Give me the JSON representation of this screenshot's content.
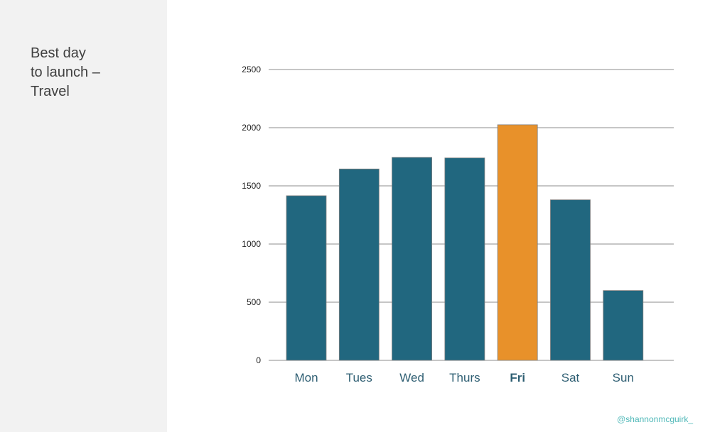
{
  "slide": {
    "title": "Best day\nto launch –\nTravel",
    "credit": "@shannonmcguirk_"
  },
  "colors": {
    "bar": "#21677f",
    "highlight": "#e8912a",
    "grid": "#8c8c8c",
    "label": "#2f5f73"
  },
  "chart_data": {
    "type": "bar",
    "title": "Best day to launch – Travel",
    "categories": [
      "Mon",
      "Tues",
      "Wed",
      "Thurs",
      "Fri",
      "Sat",
      "Sun"
    ],
    "values": [
      1415,
      1645,
      1745,
      1740,
      2025,
      1380,
      600
    ],
    "highlight": "Fri",
    "ylim": [
      0,
      2500
    ],
    "yticks": [
      "0",
      "500",
      "1000",
      "1500",
      "2000",
      "2500"
    ],
    "grid": true,
    "xlabel": "",
    "ylabel": ""
  }
}
